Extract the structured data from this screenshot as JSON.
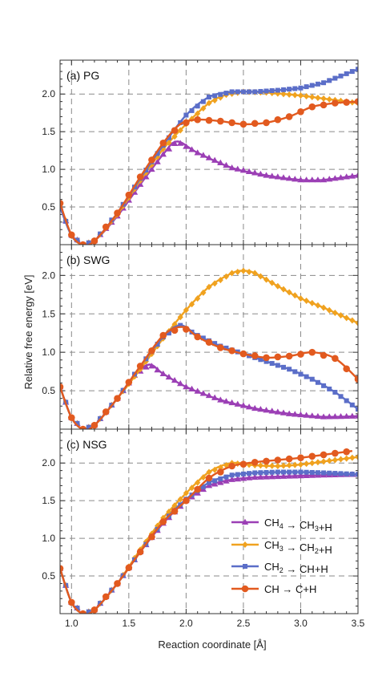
{
  "figure": {
    "xlabel": "Reaction coordinate [Å]",
    "ylabel": "Relative free energy [eV]"
  },
  "legend": {
    "entries": [
      {
        "main": "CH",
        "sub": "4",
        "arrow": " → ",
        "prod": "CH",
        "psub": "3",
        "tail": "+H",
        "color": "#9b3fb5",
        "marker": "triangle"
      },
      {
        "main": "CH",
        "sub": "3",
        "arrow": " → ",
        "prod": "CH",
        "psub": "2",
        "tail": "+H",
        "color": "#f0a21f",
        "marker": "diamond"
      },
      {
        "main": "CH",
        "sub": "2",
        "arrow": " → ",
        "prod": "CH",
        "psub": "",
        "tail": "+H",
        "color": "#5b6ec8",
        "marker": "square"
      },
      {
        "main": "CH",
        "sub": "",
        "arrow": " → ",
        "prod": "C",
        "psub": "",
        "tail": "+H",
        "color": "#e25a1f",
        "marker": "circle"
      }
    ]
  },
  "chart_data": [
    {
      "type": "line",
      "panel_label": "(a) PG",
      "xlim": [
        0.9,
        3.5
      ],
      "ylim": [
        0.0,
        2.45
      ],
      "xticks": [
        "1.0",
        "1.5",
        "2.0",
        "2.5",
        "3.0",
        "3.5"
      ],
      "xtick_values": [
        1.0,
        1.5,
        2.0,
        2.5,
        3.0,
        3.5
      ],
      "yticks": [
        "0.5",
        "1.0",
        "1.5",
        "2.0"
      ],
      "ytick_values": [
        0.5,
        1.0,
        1.5,
        2.0
      ],
      "series": [
        {
          "color": "#9b3fb5",
          "marker": "triangle",
          "x": [
            0.9,
            1.0,
            1.1,
            1.2,
            1.4,
            1.6,
            1.8,
            1.92,
            2.1,
            2.4,
            2.7,
            3.0,
            3.2,
            3.5
          ],
          "y": [
            0.5,
            0.13,
            0.0,
            0.05,
            0.38,
            0.8,
            1.2,
            1.37,
            1.22,
            1.02,
            0.92,
            0.86,
            0.86,
            0.92
          ]
        },
        {
          "color": "#f0a21f",
          "marker": "diamond",
          "x": [
            0.9,
            1.0,
            1.1,
            1.2,
            1.4,
            1.6,
            1.8,
            2.0,
            2.2,
            2.35,
            2.5,
            2.7,
            3.0,
            3.2,
            3.5
          ],
          "y": [
            0.52,
            0.12,
            0.0,
            0.05,
            0.4,
            0.85,
            1.27,
            1.6,
            1.88,
            1.99,
            2.03,
            2.02,
            1.98,
            1.94,
            1.88
          ]
        },
        {
          "color": "#5b6ec8",
          "marker": "square",
          "x": [
            0.9,
            1.0,
            1.1,
            1.2,
            1.4,
            1.6,
            1.8,
            2.0,
            2.2,
            2.4,
            2.6,
            2.8,
            3.0,
            3.2,
            3.5
          ],
          "y": [
            0.5,
            0.12,
            0.0,
            0.05,
            0.42,
            0.88,
            1.32,
            1.72,
            1.96,
            2.03,
            2.03,
            2.05,
            2.08,
            2.15,
            2.33
          ]
        },
        {
          "color": "#e25a1f",
          "marker": "circle",
          "x": [
            0.9,
            1.0,
            1.1,
            1.2,
            1.4,
            1.6,
            1.8,
            1.95,
            2.1,
            2.3,
            2.5,
            2.7,
            2.9,
            3.1,
            3.3,
            3.5
          ],
          "y": [
            0.55,
            0.13,
            0.0,
            0.05,
            0.42,
            0.9,
            1.35,
            1.6,
            1.66,
            1.64,
            1.6,
            1.62,
            1.7,
            1.83,
            1.88,
            1.9
          ]
        }
      ]
    },
    {
      "type": "line",
      "panel_label": "(b) SWG",
      "xlim": [
        0.9,
        3.5
      ],
      "ylim": [
        0.0,
        2.4
      ],
      "xticks": [
        "1.0",
        "1.5",
        "2.0",
        "2.5",
        "3.0",
        "3.5"
      ],
      "xtick_values": [
        1.0,
        1.5,
        2.0,
        2.5,
        3.0,
        3.5
      ],
      "yticks": [
        "0.5",
        "1.0",
        "1.5",
        "2.0"
      ],
      "ytick_values": [
        0.5,
        1.0,
        1.5,
        2.0
      ],
      "series": [
        {
          "color": "#9b3fb5",
          "marker": "triangle",
          "x": [
            0.9,
            1.0,
            1.1,
            1.2,
            1.4,
            1.55,
            1.68,
            1.8,
            2.0,
            2.3,
            2.6,
            2.9,
            3.2,
            3.5
          ],
          "y": [
            0.55,
            0.15,
            0.0,
            0.05,
            0.4,
            0.7,
            0.84,
            0.72,
            0.55,
            0.38,
            0.27,
            0.2,
            0.16,
            0.17
          ]
        },
        {
          "color": "#f0a21f",
          "marker": "diamond",
          "x": [
            0.9,
            1.0,
            1.1,
            1.2,
            1.4,
            1.6,
            1.8,
            2.0,
            2.2,
            2.4,
            2.5,
            2.6,
            2.8,
            3.0,
            3.2,
            3.5
          ],
          "y": [
            0.55,
            0.15,
            0.0,
            0.05,
            0.4,
            0.78,
            1.18,
            1.55,
            1.85,
            2.03,
            2.06,
            2.03,
            1.86,
            1.7,
            1.58,
            1.38
          ]
        },
        {
          "color": "#5b6ec8",
          "marker": "square",
          "x": [
            0.9,
            1.0,
            1.1,
            1.2,
            1.4,
            1.6,
            1.8,
            1.95,
            2.1,
            2.3,
            2.5,
            2.7,
            2.9,
            3.1,
            3.3,
            3.5
          ],
          "y": [
            0.55,
            0.15,
            0.0,
            0.05,
            0.4,
            0.82,
            1.2,
            1.35,
            1.22,
            1.08,
            0.98,
            0.88,
            0.78,
            0.65,
            0.48,
            0.26
          ]
        },
        {
          "color": "#e25a1f",
          "marker": "circle",
          "x": [
            0.9,
            1.0,
            1.1,
            1.2,
            1.4,
            1.6,
            1.8,
            1.97,
            2.1,
            2.3,
            2.5,
            2.7,
            2.9,
            3.1,
            3.3,
            3.5
          ],
          "y": [
            0.55,
            0.15,
            0.0,
            0.05,
            0.4,
            0.82,
            1.22,
            1.33,
            1.2,
            1.06,
            0.98,
            0.93,
            0.95,
            1.0,
            0.92,
            0.65
          ]
        }
      ]
    },
    {
      "type": "line",
      "panel_label": "(c) NSG",
      "xlim": [
        0.9,
        3.5
      ],
      "ylim": [
        0.0,
        2.45
      ],
      "xticks": [
        "1.0",
        "1.5",
        "2.0",
        "2.5",
        "3.0",
        "3.5"
      ],
      "xtick_values": [
        1.0,
        1.5,
        2.0,
        2.5,
        3.0,
        3.5
      ],
      "yticks": [
        "0.5",
        "1.0",
        "1.5",
        "2.0"
      ],
      "ytick_values": [
        0.5,
        1.0,
        1.5,
        2.0
      ],
      "series": [
        {
          "color": "#9b3fb5",
          "marker": "triangle",
          "x": [
            0.9,
            1.0,
            1.1,
            1.2,
            1.4,
            1.6,
            1.8,
            2.0,
            2.2,
            2.4,
            2.6,
            2.8,
            3.0,
            3.2,
            3.5
          ],
          "y": [
            0.6,
            0.15,
            0.0,
            0.05,
            0.4,
            0.82,
            1.2,
            1.5,
            1.7,
            1.78,
            1.81,
            1.82,
            1.83,
            1.84,
            1.85
          ]
        },
        {
          "color": "#f0a21f",
          "marker": "diamond",
          "x": [
            0.9,
            1.0,
            1.1,
            1.2,
            1.4,
            1.6,
            1.8,
            2.0,
            2.2,
            2.4,
            2.6,
            2.8,
            3.0,
            3.2,
            3.5
          ],
          "y": [
            0.6,
            0.15,
            0.0,
            0.05,
            0.4,
            0.85,
            1.27,
            1.6,
            1.88,
            2.0,
            1.97,
            1.96,
            1.98,
            2.02,
            2.08
          ]
        },
        {
          "color": "#5b6ec8",
          "marker": "square",
          "x": [
            0.9,
            1.0,
            1.1,
            1.2,
            1.4,
            1.6,
            1.8,
            2.0,
            2.2,
            2.4,
            2.6,
            2.8,
            3.0,
            3.2,
            3.5
          ],
          "y": [
            0.6,
            0.15,
            0.0,
            0.05,
            0.4,
            0.82,
            1.22,
            1.52,
            1.74,
            1.84,
            1.87,
            1.88,
            1.88,
            1.87,
            1.85
          ]
        },
        {
          "color": "#e25a1f",
          "marker": "circle",
          "x": [
            0.9,
            1.0,
            1.1,
            1.2,
            1.4,
            1.6,
            1.8,
            2.0,
            2.2,
            2.4,
            2.6,
            2.8,
            3.0,
            3.2,
            3.45
          ],
          "y": [
            0.6,
            0.15,
            0.0,
            0.05,
            0.4,
            0.82,
            1.22,
            1.5,
            1.8,
            1.96,
            2.01,
            2.04,
            2.07,
            2.11,
            2.16
          ]
        }
      ]
    }
  ]
}
